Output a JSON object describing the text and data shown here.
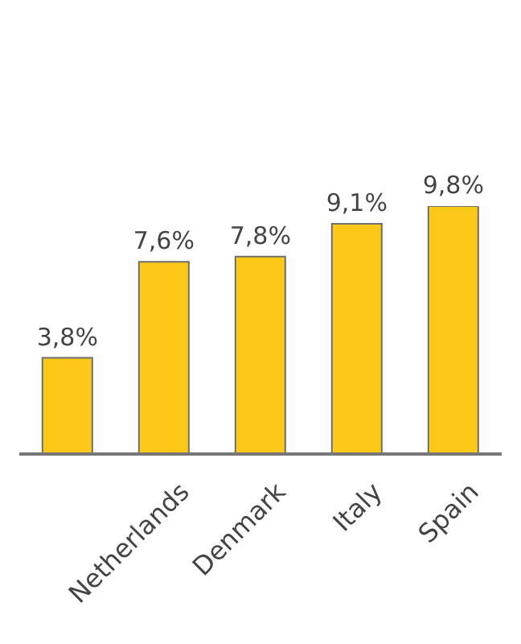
{
  "chart_data": {
    "type": "bar",
    "categories": [
      null,
      "Netherlands",
      "Denmark",
      "Italy",
      "Spain"
    ],
    "values": [
      3.8,
      7.6,
      7.8,
      9.1,
      9.8
    ],
    "value_labels": [
      "3,8%",
      "7,6%",
      "7,8%",
      "9,1%",
      "9,8%"
    ],
    "color": "#fcc917",
    "tick_labels": "x",
    "grid": false
  }
}
